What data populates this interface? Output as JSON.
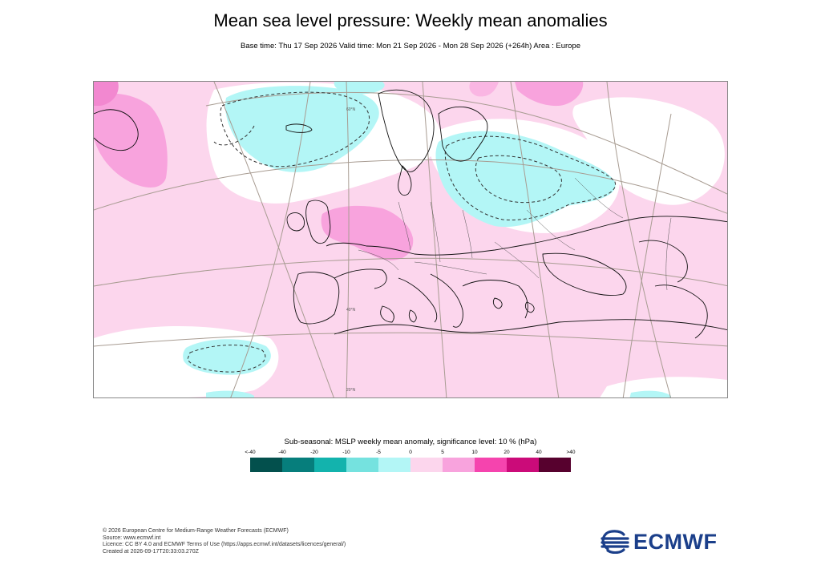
{
  "title": "Mean sea level pressure: Weekly mean anomalies",
  "subtitle": "Base time: Thu 17 Sep 2026 Valid time: Mon 21 Sep 2026 - Mon 28 Sep 2026 (+264h) Area : Europe",
  "map": {
    "graticule_labels": [
      "60°N",
      "40°N",
      "20°N"
    ]
  },
  "legend": {
    "title": "Sub-seasonal: MSLP weekly mean anomaly, significance level: 10 % (hPa)",
    "ticks": [
      "<-40",
      "-40",
      "-20",
      "-10",
      "-5",
      "0",
      "5",
      "10",
      "20",
      "40",
      ">40"
    ],
    "colors": [
      "#03504d",
      "#067e7c",
      "#13b3ad",
      "#75e2df",
      "#b3f6f6",
      "#fcd6ed",
      "#f8a3dd",
      "#f544ae",
      "#cb0b79",
      "#57012e"
    ]
  },
  "footer": {
    "line1": "© 2026 European Centre for Medium-Range Weather Forecasts (ECMWF)",
    "line2": "Source: www.ecmwf.int",
    "line3": "Licence: CC BY 4.0 and ECMWF Terms of Use (https://apps.ecmwf.int/datasets/licences/general/)",
    "line4": "Created at 2026-09-17T20:33:03.270Z"
  },
  "logo": {
    "text": "ECMWF",
    "color": "#1b3f8a"
  }
}
